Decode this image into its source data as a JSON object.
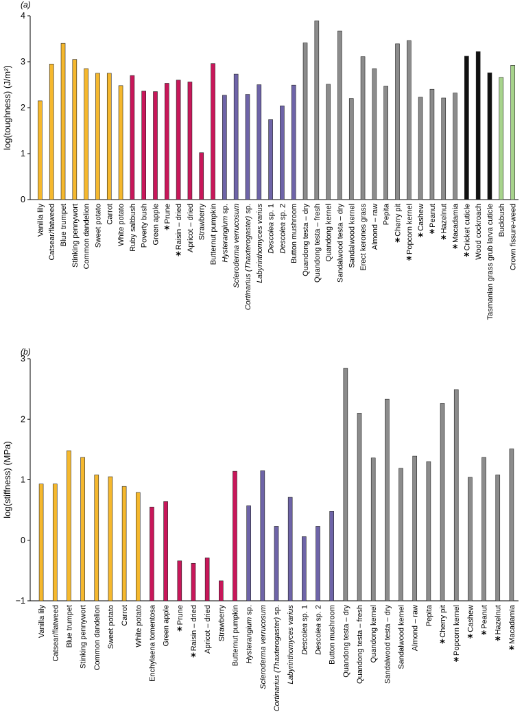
{
  "colors": {
    "yellow": "#f5b82e",
    "magenta": "#c8175a",
    "purple": "#6e64a8",
    "grey": "#8c8c8c",
    "black": "#111111",
    "green": "#a7d38c"
  },
  "chart_data": [
    {
      "type": "bar",
      "panel_label": "(a)",
      "ylabel": "log(toughness) (J/m²)",
      "ylim": [
        0,
        4
      ],
      "yticks": [
        "0",
        "1",
        "2",
        "3",
        "4"
      ],
      "grid": false,
      "categories": [
        {
          "name": "Vanilla lily",
          "value": 2.15,
          "color": "yellow"
        },
        {
          "name": "Catsear/flatweed",
          "value": 2.95,
          "color": "yellow"
        },
        {
          "name": "Blue trumpet",
          "value": 3.4,
          "color": "yellow"
        },
        {
          "name": "Stinking pennywort",
          "value": 3.05,
          "color": "yellow"
        },
        {
          "name": "Common dandelion",
          "value": 2.85,
          "color": "yellow"
        },
        {
          "name": "Sweet potato",
          "value": 2.75,
          "color": "yellow"
        },
        {
          "name": "Carrot",
          "value": 2.75,
          "color": "yellow"
        },
        {
          "name": "White potato",
          "value": 2.48,
          "color": "yellow"
        },
        {
          "name": "Ruby saltbush",
          "value": 2.7,
          "color": "magenta"
        },
        {
          "name": "Poverty bush",
          "value": 2.36,
          "color": "magenta"
        },
        {
          "name": "Green apple",
          "value": 2.35,
          "color": "magenta"
        },
        {
          "name": "Prune",
          "value": 2.53,
          "color": "magenta",
          "star": true
        },
        {
          "name": "Raisin – dried",
          "value": 2.6,
          "color": "magenta",
          "star": true
        },
        {
          "name": "Apricot – dried",
          "value": 2.56,
          "color": "magenta"
        },
        {
          "name": "Strawberry",
          "value": 1.02,
          "color": "magenta"
        },
        {
          "name": "Butternut pumpkin",
          "value": 2.96,
          "color": "magenta"
        },
        {
          "name": "Hysterangium sp.",
          "value": 2.27,
          "color": "purple",
          "italic": "Hysterangium",
          "rest": " sp."
        },
        {
          "name": "Scleroderma verrucosum",
          "value": 2.73,
          "color": "purple",
          "italic": "Scleroderma verrucosum",
          "rest": ""
        },
        {
          "name": "Cortinarius (Thaxterogaster) sp.",
          "value": 2.29,
          "color": "purple",
          "italic": "Cortinarius (Thaxterogaster)",
          "rest": " sp."
        },
        {
          "name": "Labyrinthomyces varius",
          "value": 2.5,
          "color": "purple",
          "italic": "Labyrinthomyces varius",
          "rest": ""
        },
        {
          "name": "Descolea sp. 1",
          "value": 1.74,
          "color": "purple",
          "italic": "Descolea",
          "rest": " sp. 1"
        },
        {
          "name": "Descolea sp. 2",
          "value": 2.04,
          "color": "purple",
          "italic": "Descolea",
          "rest": " sp. 2"
        },
        {
          "name": "Button mushroom",
          "value": 2.49,
          "color": "purple"
        },
        {
          "name": "Quandong testa – dry",
          "value": 3.41,
          "color": "grey"
        },
        {
          "name": "Quandong testa – fresh",
          "value": 3.89,
          "color": "grey"
        },
        {
          "name": "Quandong  kernel",
          "value": 2.51,
          "color": "grey"
        },
        {
          "name": "Sandalwood testa – dry",
          "value": 3.67,
          "color": "grey"
        },
        {
          "name": "Sandalwood kernel",
          "value": 2.2,
          "color": "grey"
        },
        {
          "name": "Erect kerones grass",
          "value": 3.11,
          "color": "grey"
        },
        {
          "name": "Almond – raw",
          "value": 2.85,
          "color": "grey"
        },
        {
          "name": "Pepita",
          "value": 2.47,
          "color": "grey"
        },
        {
          "name": "Cherry pit",
          "value": 3.39,
          "color": "grey",
          "star": true
        },
        {
          "name": "Popcorn kernel",
          "value": 3.46,
          "color": "grey",
          "star": true
        },
        {
          "name": "Cashew",
          "value": 2.23,
          "color": "grey",
          "star": true
        },
        {
          "name": "Peanut",
          "value": 2.4,
          "color": "grey",
          "star": true
        },
        {
          "name": "Hazelnut",
          "value": 2.21,
          "color": "grey",
          "star": true
        },
        {
          "name": "Macadamia",
          "value": 2.32,
          "color": "grey",
          "star": true
        },
        {
          "name": "Cricket cuticle",
          "value": 3.12,
          "color": "black",
          "star": true
        },
        {
          "name": "Wood cockroach",
          "value": 3.22,
          "color": "black"
        },
        {
          "name": "Tasmanian grass grub larva cuticle",
          "value": 2.76,
          "color": "black"
        },
        {
          "name": "Buckbush",
          "value": 2.66,
          "color": "green"
        },
        {
          "name": "Crown fissure-weed",
          "value": 2.92,
          "color": "green"
        }
      ]
    },
    {
      "type": "bar",
      "panel_label": "(b)",
      "ylabel": "log(stiffness) (MPa)",
      "ylim": [
        -1,
        3
      ],
      "yticks": [
        "−1",
        "0",
        "1",
        "2",
        "3"
      ],
      "grid": false,
      "categories": [
        {
          "name": "Vanilla lily",
          "value": 0.93,
          "color": "yellow"
        },
        {
          "name": "Catsear/flatweed",
          "value": 0.93,
          "color": "yellow"
        },
        {
          "name": "Blue trumpet",
          "value": 1.48,
          "color": "yellow"
        },
        {
          "name": "Stinking pennywort",
          "value": 1.37,
          "color": "yellow"
        },
        {
          "name": "Common dandelion",
          "value": 1.08,
          "color": "yellow"
        },
        {
          "name": "Sweet potato",
          "value": 1.05,
          "color": "yellow"
        },
        {
          "name": "Carrot",
          "value": 0.89,
          "color": "yellow"
        },
        {
          "name": "White potato",
          "value": 0.79,
          "color": "yellow"
        },
        {
          "name": "Enchylaena tomentosa",
          "value": 0.55,
          "color": "magenta"
        },
        {
          "name": "Green apple",
          "value": 0.64,
          "color": "magenta"
        },
        {
          "name": "Prune",
          "value": -0.34,
          "color": "magenta",
          "star": true
        },
        {
          "name": "Raisin – dried",
          "value": -0.38,
          "color": "magenta",
          "star": true
        },
        {
          "name": "Apricot – dried",
          "value": -0.29,
          "color": "magenta"
        },
        {
          "name": "Strawberry",
          "value": -0.67,
          "color": "magenta"
        },
        {
          "name": "Butternut pumpkin",
          "value": 1.14,
          "color": "magenta"
        },
        {
          "name": "Hysterangium sp.",
          "value": 0.57,
          "color": "purple",
          "italic": "Hysterangium",
          "rest": " sp."
        },
        {
          "name": "Scleroderma verrucosum",
          "value": 1.15,
          "color": "purple",
          "italic": "Scleroderma verrucosum",
          "rest": ""
        },
        {
          "name": "Cortinarius (Thaxterogaster) sp.",
          "value": 0.23,
          "color": "purple",
          "italic": "Cortinarius (Thaxterogaster)",
          "rest": " sp."
        },
        {
          "name": "Labyrinthomyces varius",
          "value": 0.71,
          "color": "purple",
          "italic": "Labyrinthomyces varius",
          "rest": ""
        },
        {
          "name": "Descolea sp. 1",
          "value": 0.06,
          "color": "purple",
          "italic": "Descolea",
          "rest": " sp. 1"
        },
        {
          "name": "Descolea sp. 2",
          "value": 0.23,
          "color": "purple",
          "italic": "Descolea",
          "rest": " sp. 2"
        },
        {
          "name": "Button mushroom",
          "value": 0.48,
          "color": "purple"
        },
        {
          "name": "Quandong testa – dry",
          "value": 2.84,
          "color": "grey"
        },
        {
          "name": "Quandong testa – fresh",
          "value": 2.1,
          "color": "grey"
        },
        {
          "name": "Quandong  kernel",
          "value": 1.36,
          "color": "grey"
        },
        {
          "name": "Sandalwood testa – dry",
          "value": 2.33,
          "color": "grey"
        },
        {
          "name": "Sandalwood kernel",
          "value": 1.19,
          "color": "grey"
        },
        {
          "name": "Almond – raw",
          "value": 1.39,
          "color": "grey"
        },
        {
          "name": "Pepita",
          "value": 1.3,
          "color": "grey"
        },
        {
          "name": "Cherry pit",
          "value": 2.26,
          "color": "grey",
          "star": true
        },
        {
          "name": "Popcorn kernel",
          "value": 2.49,
          "color": "grey",
          "star": true
        },
        {
          "name": "Cashew",
          "value": 1.04,
          "color": "grey",
          "star": true
        },
        {
          "name": "Peanut",
          "value": 1.37,
          "color": "grey",
          "star": true
        },
        {
          "name": "Hazelnut",
          "value": 1.08,
          "color": "grey",
          "star": true
        },
        {
          "name": "Macadamia",
          "value": 1.51,
          "color": "grey",
          "star": true
        }
      ]
    }
  ]
}
